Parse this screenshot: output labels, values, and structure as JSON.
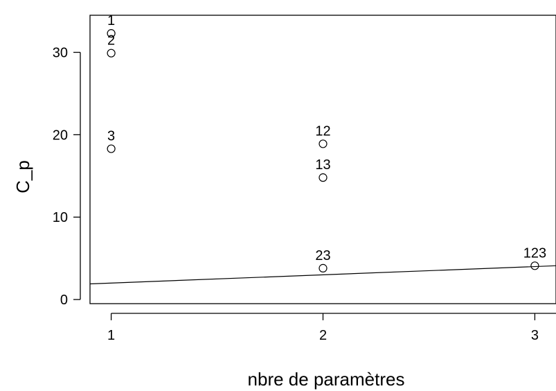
{
  "chart_data": {
    "type": "scatter",
    "title": "",
    "xlabel": "nbre de paramètres",
    "ylabel": "C_p",
    "xlim": [
      0.9,
      3.1
    ],
    "ylim": [
      -0.5,
      34.5
    ],
    "xticks": [
      1,
      2,
      3
    ],
    "yticks": [
      0,
      10,
      20,
      30
    ],
    "grid": false,
    "points": [
      {
        "label": "1",
        "x": 1,
        "y": 32.3
      },
      {
        "label": "2",
        "x": 1,
        "y": 29.9
      },
      {
        "label": "3",
        "x": 1,
        "y": 18.3
      },
      {
        "label": "12",
        "x": 2,
        "y": 18.9
      },
      {
        "label": "13",
        "x": 2,
        "y": 14.8
      },
      {
        "label": "23",
        "x": 2,
        "y": 3.8
      },
      {
        "label": "123",
        "x": 3,
        "y": 4.1
      }
    ],
    "reference_line": {
      "intercept": 1,
      "slope": 1
    }
  }
}
